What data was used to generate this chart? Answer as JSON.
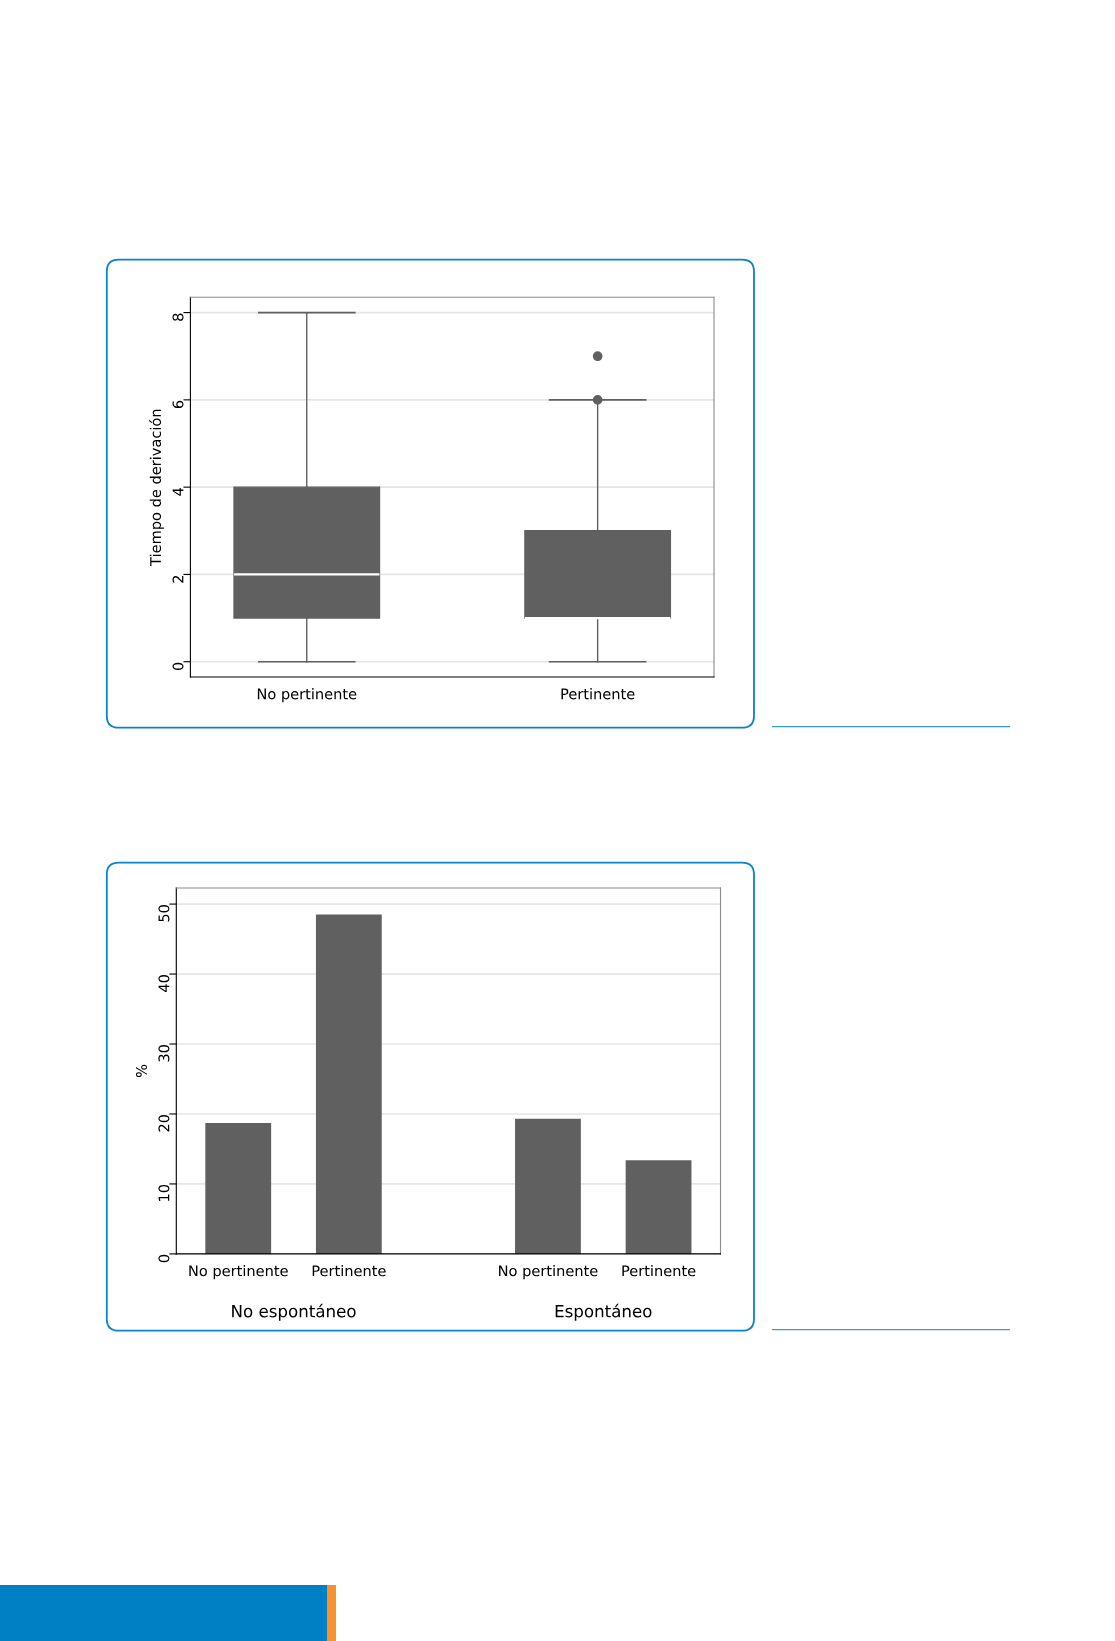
{
  "chart_data": [
    {
      "type": "box",
      "ylabel": "Tiempo de derivación",
      "categories": [
        "No pertinente",
        "Pertinente"
      ],
      "series": [
        {
          "color": "#606060",
          "boxes": [
            {
              "low": 0,
              "q1": 1,
              "median": 2,
              "q3": 4,
              "high": 8
            },
            {
              "low": 0,
              "q1": 1,
              "median": 1,
              "q3": 3,
              "high": 6,
              "outliers": [
                6,
                7
              ]
            }
          ]
        }
      ],
      "ylim": [
        -0.35,
        8.35
      ],
      "yticks": [
        0,
        2,
        4,
        6,
        8
      ],
      "grid": "y",
      "marker": "circle"
    },
    {
      "type": "bar",
      "ylabel": "%",
      "categories": [
        "No pertinente",
        "Pertinente",
        "No pertinente",
        "Pertinente"
      ],
      "series": [
        {
          "color": "#606060",
          "values": [
            18.7,
            48.5,
            19.3,
            13.4
          ]
        }
      ],
      "ylim": [
        0,
        52.3
      ],
      "yticks": [
        0,
        10,
        20,
        30,
        40,
        50
      ],
      "grid": "y",
      "annotations": [
        "No espontáneo",
        "Espontáneo"
      ]
    }
  ]
}
